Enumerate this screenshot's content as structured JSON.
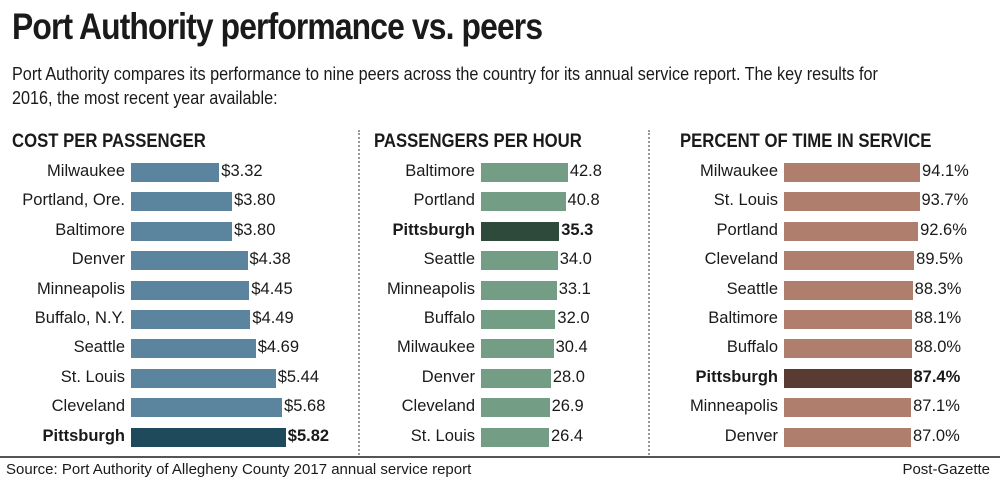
{
  "header": {
    "title": "Port Authority performance vs. peers",
    "subtitle": "Port Authority compares its performance to nine peers across the country for its annual service report. The key results for 2016, the most recent year available:"
  },
  "footer": {
    "source": "Source: Port Authority of Allegheny County 2017 annual service report",
    "credit": "Post-Gazette"
  },
  "chart_data": [
    {
      "type": "bar",
      "title": "COST PER PASSENGER",
      "highlight": "Pittsburgh",
      "color": "#5b849e",
      "highlight_color": "#1f4a5c",
      "categories": [
        "Milwaukee",
        "Portland, Ore.",
        "Baltimore",
        "Denver",
        "Minneapolis",
        "Buffalo, N.Y.",
        "Seattle",
        "St. Louis",
        "Cleveland",
        "Pittsburgh"
      ],
      "values": [
        3.32,
        3.8,
        3.8,
        4.38,
        4.45,
        4.49,
        4.69,
        5.44,
        5.68,
        5.82
      ],
      "labels": [
        "$3.32",
        "$3.80",
        "$3.80",
        "$4.38",
        "$4.45",
        "$4.49",
        "$4.69",
        "$5.44",
        "$5.68",
        "$5.82"
      ]
    },
    {
      "type": "bar",
      "title": "PASSENGERS PER HOUR",
      "highlight": "Pittsburgh",
      "color": "#739d85",
      "highlight_color": "#2e4a3a",
      "categories": [
        "Baltimore",
        "Portland",
        "Pittsburgh",
        "Seattle",
        "Minneapolis",
        "Buffalo",
        "Milwaukee",
        "Denver",
        "Cleveland",
        "St. Louis"
      ],
      "values": [
        42.8,
        40.8,
        35.3,
        34.0,
        33.1,
        32.0,
        30.4,
        28.0,
        26.9,
        26.4
      ],
      "labels": [
        "42.8",
        "40.8",
        "35.3",
        "34.0",
        "33.1",
        "32.0",
        "30.4",
        "28.0",
        "26.9",
        "26.4"
      ]
    },
    {
      "type": "bar",
      "title": "PERCENT OF TIME IN SERVICE",
      "highlight": "Pittsburgh",
      "color": "#b07e6d",
      "highlight_color": "#5a3b31",
      "categories": [
        "Milwaukee",
        "St. Louis",
        "Portland",
        "Cleveland",
        "Seattle",
        "Baltimore",
        "Buffalo",
        "Pittsburgh",
        "Minneapolis",
        "Denver"
      ],
      "values": [
        94.1,
        93.7,
        92.6,
        89.5,
        88.3,
        88.1,
        88.0,
        87.4,
        87.1,
        87.0
      ],
      "labels": [
        "94.1%",
        "93.7%",
        "92.6%",
        "89.5%",
        "88.3%",
        "88.1%",
        "88.0%",
        "87.4%",
        "87.1%",
        "87.0%"
      ]
    }
  ]
}
